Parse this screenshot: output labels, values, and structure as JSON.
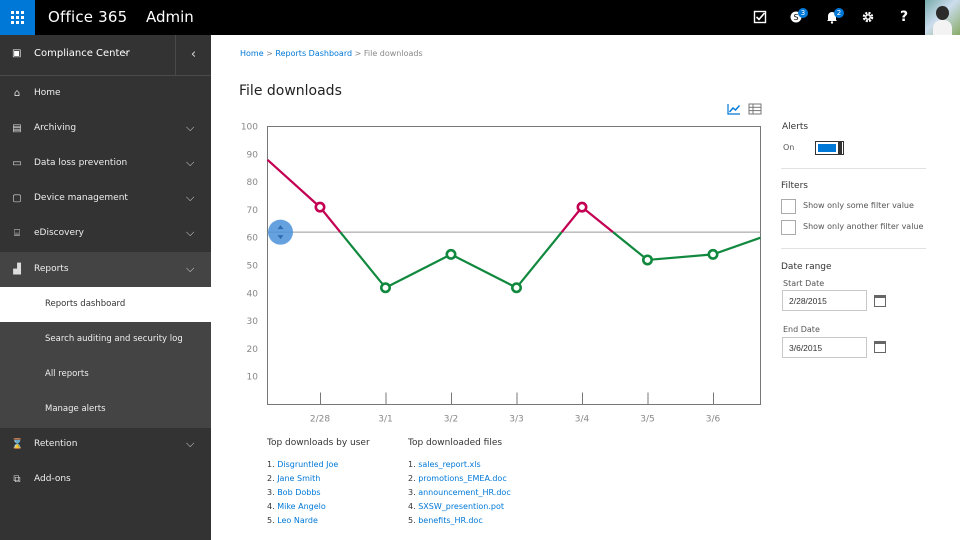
{
  "header": {
    "brand": "Office 365",
    "section": "Admin",
    "badges": {
      "help_count": "3",
      "notifications_count": "2"
    },
    "accent": "#0078d7"
  },
  "sidebar": {
    "title": "Compliance Center",
    "items": [
      {
        "label": "Home",
        "icon": "home-icon"
      },
      {
        "label": "Archiving",
        "icon": "archive-icon"
      },
      {
        "label": "Data loss prevention",
        "icon": "dlp-icon"
      },
      {
        "label": "Device management",
        "icon": "device-icon"
      },
      {
        "label": "eDiscovery",
        "icon": "ediscovery-icon"
      },
      {
        "label": "Reports",
        "icon": "reports-icon"
      },
      {
        "label": "Retention",
        "icon": "retention-icon"
      },
      {
        "label": "Add-ons",
        "icon": "addons-icon"
      }
    ],
    "reports_sub": [
      {
        "label": "Reports dashboard"
      },
      {
        "label": "Search auditing and security log"
      },
      {
        "label": "All reports"
      },
      {
        "label": "Manage alerts"
      }
    ]
  },
  "breadcrumb": {
    "home": "Home",
    "dashboard": "Reports Dashboard",
    "current": "File downloads",
    "sep": ">"
  },
  "page": {
    "title": "File downloads"
  },
  "chart_data": {
    "type": "line",
    "title": "",
    "categories": [
      "2/28",
      "3/1",
      "3/2",
      "3/3",
      "3/4",
      "3/5",
      "3/6"
    ],
    "values": [
      71,
      42,
      54,
      42,
      71,
      52,
      54
    ],
    "start_value": 88,
    "end_value": 60,
    "threshold": 62,
    "ylim": [
      0,
      100
    ],
    "yticks": [
      10,
      20,
      30,
      40,
      50,
      60,
      70,
      80,
      90,
      100
    ],
    "colors": {
      "above": "#c30052",
      "below": "#10893e",
      "threshold": "#999999",
      "handle": "#4a90d9"
    }
  },
  "top_users": {
    "title": "Top downloads by user",
    "items": [
      "Disgruntled Joe",
      "Jane Smith",
      "Bob Dobbs",
      "Mike Angelo",
      "Leo Narde"
    ]
  },
  "top_files": {
    "title": "Top downloaded files",
    "items": [
      "sales_report.xls",
      "promotions_EMEA.doc",
      "announcement_HR.doc",
      "SXSW_presention.pot",
      "benefits_HR.doc"
    ]
  },
  "panel": {
    "alerts_label": "Alerts",
    "alerts_state": "On",
    "filters_label": "Filters",
    "filter1": "Show only some filter value",
    "filter2": "Show only another filter value",
    "date_range_label": "Date range",
    "start_label": "Start Date",
    "start_value": "2/28/2015",
    "end_label": "End Date",
    "end_value": "3/6/2015"
  }
}
